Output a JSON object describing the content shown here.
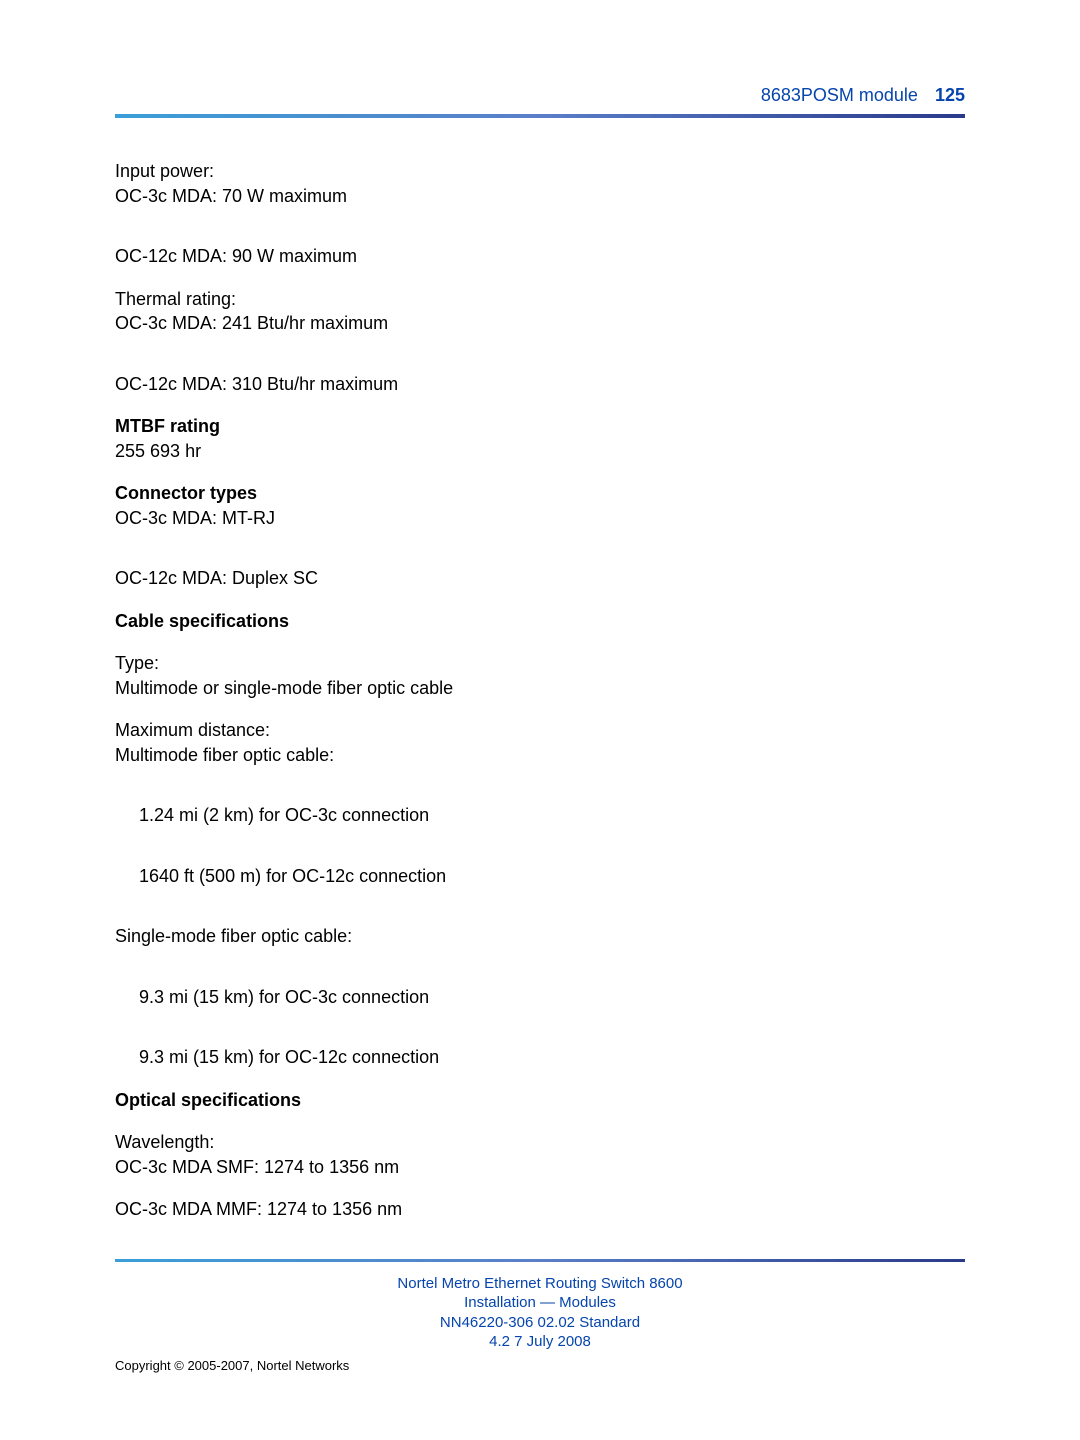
{
  "header": {
    "module": "8683POSM module",
    "page_number": "125"
  },
  "body": {
    "input_power_label": "Input power:",
    "input_power_oc3": "OC-3c MDA: 70 W maximum",
    "input_power_oc12": "OC-12c MDA: 90 W maximum",
    "thermal_label": "Thermal rating:",
    "thermal_oc3": "OC-3c MDA: 241 Btu/hr maximum",
    "thermal_oc12": "OC-12c MDA: 310 Btu/hr maximum",
    "mtbf_heading": "MTBF rating",
    "mtbf_value": "255 693 hr",
    "connector_heading": "Connector types",
    "connector_oc3": "OC-3c MDA: MT-RJ",
    "connector_oc12": "OC-12c MDA: Duplex SC",
    "cable_heading": "Cable specifications",
    "cable_type_label": "Type:",
    "cable_type_value": "Multimode or single-mode fiber optic cable",
    "max_dist_label": "Maximum distance:",
    "mm_cable_label": "Multimode fiber optic cable:",
    "mm_oc3": "1.24 mi (2 km) for OC-3c connection",
    "mm_oc12": "1640 ft (500 m) for OC-12c connection",
    "sm_cable_label": "Single-mode fiber optic cable:",
    "sm_oc3": "9.3 mi (15 km) for OC-3c connection",
    "sm_oc12": "9.3 mi (15 km) for OC-12c connection",
    "optical_heading": "Optical specifications",
    "wavelength_label": "Wavelength:",
    "wavelength_smf": "OC-3c MDA SMF: 1274 to 1356 nm",
    "wavelength_mmf": "OC-3c MDA MMF: 1274 to 1356 nm"
  },
  "footer": {
    "line1": "Nortel Metro Ethernet Routing Switch 8600",
    "line2": "Installation — Modules",
    "line3": "NN46220-306   02.02   Standard",
    "line4": "4.2   7 July 2008",
    "copyright": "Copyright © 2005-2007, Nortel Networks"
  },
  "colors": {
    "link_color": "#0645ad",
    "text_color": "#000000",
    "rule_gradient_start": "#3a9fd8",
    "rule_gradient_end": "#2a3a8a",
    "background": "#ffffff"
  },
  "typography": {
    "body_fontsize": 18,
    "header_fontsize": 18,
    "footer_fontsize": 15,
    "copyright_fontsize": 13,
    "font_family": "Arial"
  }
}
